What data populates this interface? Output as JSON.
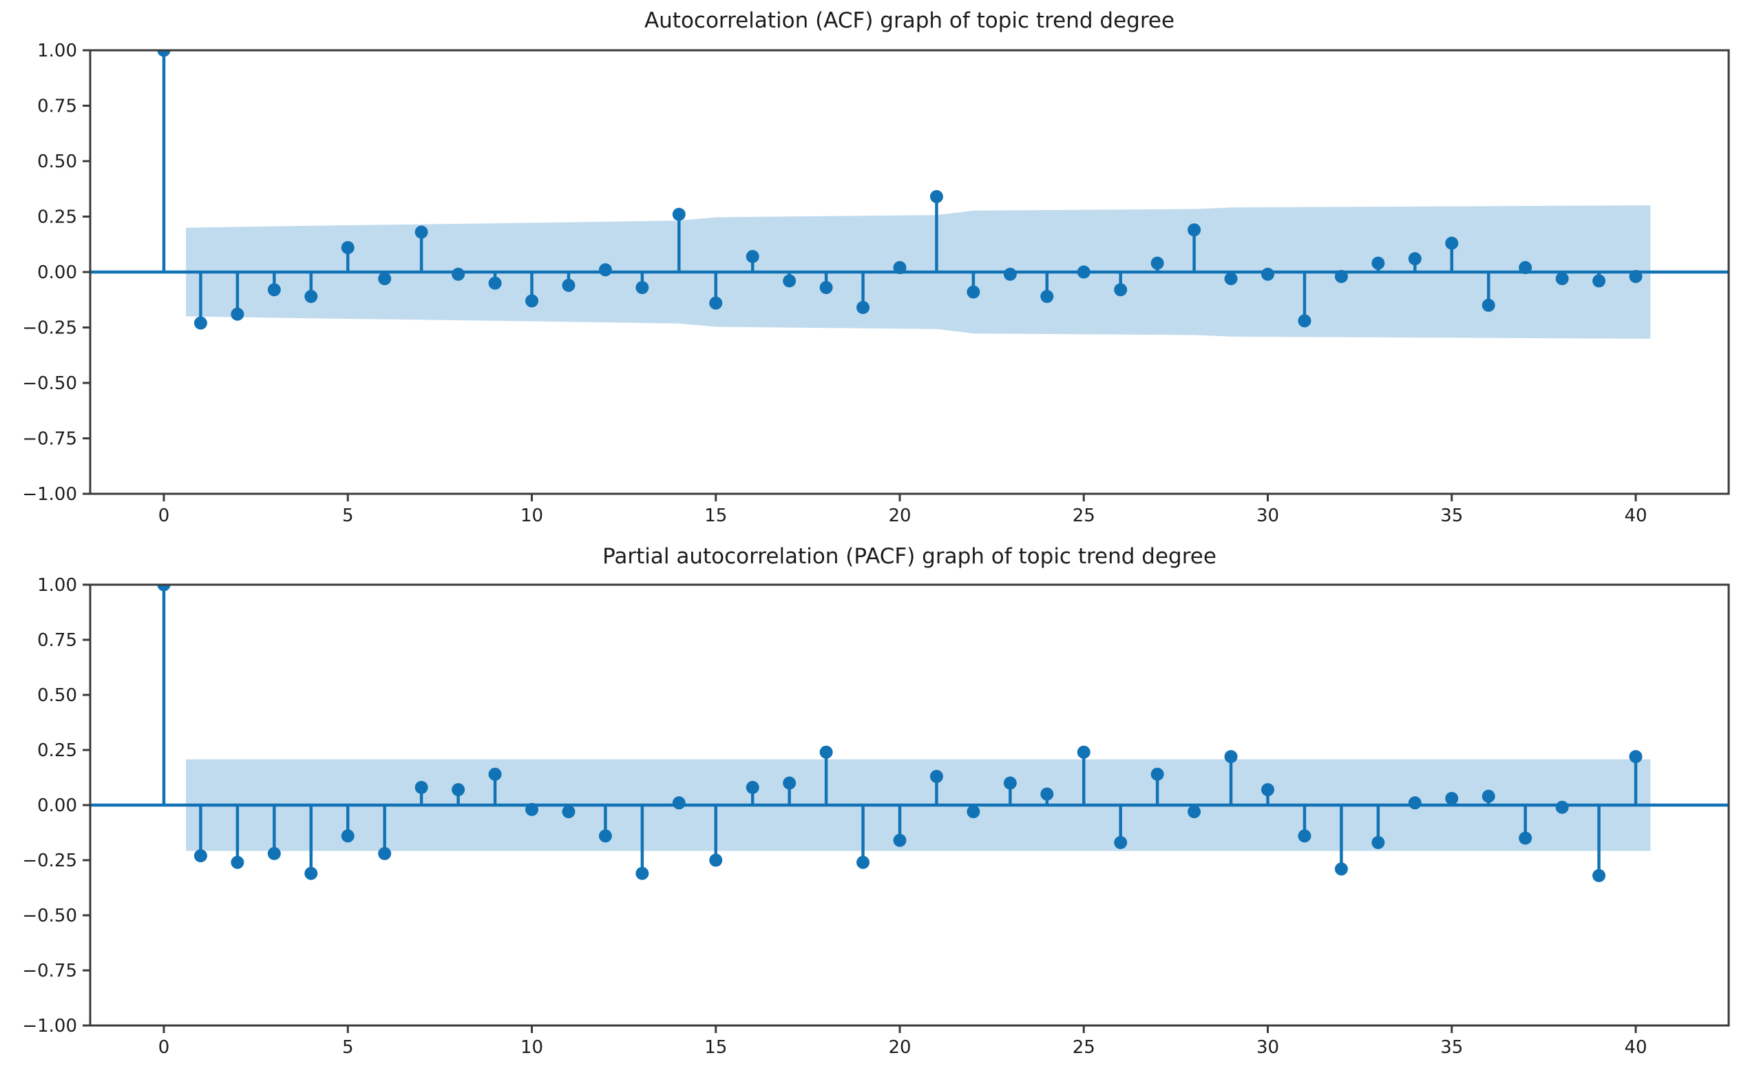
{
  "colors": {
    "stem": "#1173b5",
    "band": "#c1dbee",
    "axis": "#3a3a3a",
    "text": "#1c1c1c"
  },
  "chart_data": [
    {
      "type": "stem",
      "name": "acf",
      "title": "Autocorrelation (ACF) graph of topic trend degree",
      "xlabel": "",
      "ylabel": "",
      "ylim": [
        -1,
        1
      ],
      "xlim": [
        -2,
        42.5
      ],
      "grid": false,
      "legend": "none",
      "lags": [
        0,
        1,
        2,
        3,
        4,
        5,
        6,
        7,
        8,
        9,
        10,
        11,
        12,
        13,
        14,
        15,
        16,
        17,
        18,
        19,
        20,
        21,
        22,
        23,
        24,
        25,
        26,
        27,
        28,
        29,
        30,
        31,
        32,
        33,
        34,
        35,
        36,
        37,
        38,
        39,
        40
      ],
      "values": [
        1.0,
        -0.23,
        -0.19,
        -0.08,
        -0.11,
        0.11,
        -0.03,
        0.18,
        -0.01,
        -0.05,
        -0.13,
        -0.06,
        0.01,
        -0.07,
        0.26,
        -0.14,
        0.07,
        -0.04,
        -0.07,
        -0.16,
        0.02,
        0.34,
        -0.09,
        -0.01,
        -0.11,
        0.0,
        -0.08,
        0.04,
        0.19,
        -0.03,
        -0.01,
        -0.22,
        -0.02,
        0.04,
        0.06,
        0.13,
        -0.15,
        0.02,
        -0.03,
        -0.04,
        -0.02
      ],
      "conf_band": {
        "shape": "widening",
        "x": [
          0.6,
          5,
          10,
          14,
          15,
          21,
          22,
          28,
          29,
          40.4
        ],
        "halfwidth": [
          0.2,
          0.211,
          0.222,
          0.232,
          0.247,
          0.257,
          0.277,
          0.284,
          0.291,
          0.301
        ]
      },
      "yticks": [
        "1.00",
        "0.75",
        "0.50",
        "0.25",
        "0.00",
        "−0.25",
        "−0.50",
        "−0.75",
        "−1.00"
      ],
      "ytick_values": [
        1.0,
        0.75,
        0.5,
        0.25,
        0.0,
        -0.25,
        -0.5,
        -0.75,
        -1.0
      ],
      "xticks": [
        0,
        5,
        10,
        15,
        20,
        25,
        30,
        35,
        40
      ]
    },
    {
      "type": "stem",
      "name": "pacf",
      "title": "Partial autocorrelation (PACF) graph of topic trend degree",
      "xlabel": "",
      "ylabel": "",
      "ylim": [
        -1,
        1
      ],
      "xlim": [
        -2,
        42.5
      ],
      "grid": false,
      "legend": "none",
      "lags": [
        0,
        1,
        2,
        3,
        4,
        5,
        6,
        7,
        8,
        9,
        10,
        11,
        12,
        13,
        14,
        15,
        16,
        17,
        18,
        19,
        20,
        21,
        22,
        23,
        24,
        25,
        26,
        27,
        28,
        29,
        30,
        31,
        32,
        33,
        34,
        35,
        36,
        37,
        38,
        39,
        40
      ],
      "values": [
        1.0,
        -0.23,
        -0.26,
        -0.22,
        -0.31,
        -0.14,
        -0.22,
        0.08,
        0.07,
        0.14,
        -0.02,
        -0.03,
        -0.14,
        -0.31,
        0.01,
        -0.25,
        0.08,
        0.1,
        0.24,
        -0.26,
        -0.16,
        0.13,
        -0.03,
        0.1,
        0.05,
        0.24,
        -0.17,
        0.14,
        -0.03,
        0.22,
        0.07,
        -0.14,
        -0.29,
        -0.17,
        0.01,
        0.03,
        0.04,
        -0.15,
        -0.01,
        -0.32,
        0.22
      ],
      "conf_band": {
        "shape": "constant",
        "x": [
          0.6,
          40.4
        ],
        "halfwidth": [
          0.208,
          0.208
        ]
      },
      "yticks": [
        "1.00",
        "0.75",
        "0.50",
        "0.25",
        "0.00",
        "−0.25",
        "−0.50",
        "−0.75",
        "−1.00"
      ],
      "ytick_values": [
        1.0,
        0.75,
        0.5,
        0.25,
        0.0,
        -0.25,
        -0.5,
        -0.75,
        -1.0
      ],
      "xticks": [
        0,
        5,
        10,
        15,
        20,
        25,
        30,
        35,
        40
      ]
    }
  ]
}
